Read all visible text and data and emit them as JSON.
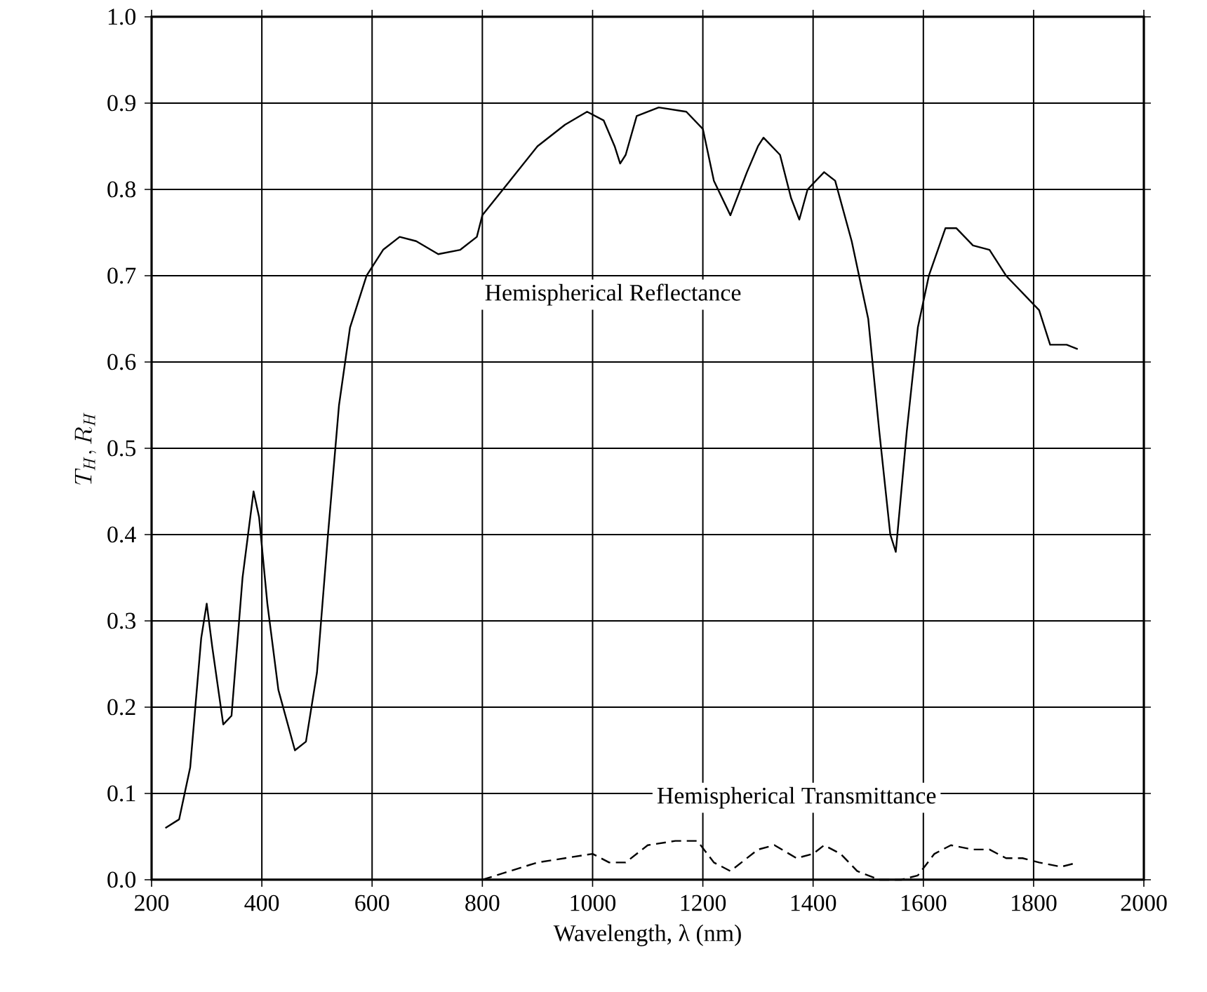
{
  "chart_data": {
    "type": "line",
    "xlabel": "Wavelength, λ (nm)",
    "ylabel": "T_H, R_H",
    "xlim": [
      200,
      2000
    ],
    "ylim": [
      0,
      1
    ],
    "xticks": [
      200,
      400,
      600,
      800,
      1000,
      1200,
      1400,
      1600,
      1800,
      2000
    ],
    "yticks": [
      {
        "value": 0,
        "label": "0.0"
      },
      0.1,
      0.2,
      0.3,
      0.4,
      0.5,
      0.6,
      0.7,
      0.8,
      0.9,
      {
        "value": 1,
        "label": "1.0"
      }
    ],
    "grid": true,
    "series": [
      {
        "name": "Hemispherical Reflectance",
        "color": "#000000",
        "line_style": "solid",
        "x": [
          225,
          250,
          270,
          290,
          300,
          310,
          330,
          345,
          365,
          385,
          395,
          410,
          430,
          460,
          480,
          500,
          520,
          540,
          560,
          590,
          620,
          650,
          680,
          720,
          760,
          790,
          800,
          850,
          900,
          950,
          990,
          1020,
          1040,
          1050,
          1060,
          1080,
          1120,
          1170,
          1200,
          1220,
          1250,
          1280,
          1300,
          1310,
          1340,
          1360,
          1375,
          1390,
          1420,
          1440,
          1470,
          1500,
          1520,
          1540,
          1550,
          1570,
          1590,
          1610,
          1640,
          1660,
          1690,
          1720,
          1750,
          1780,
          1810,
          1830,
          1860,
          1880
        ],
        "values": [
          0.06,
          0.07,
          0.13,
          0.28,
          0.32,
          0.27,
          0.18,
          0.19,
          0.35,
          0.45,
          0.42,
          0.32,
          0.22,
          0.15,
          0.16,
          0.24,
          0.4,
          0.55,
          0.64,
          0.7,
          0.73,
          0.745,
          0.74,
          0.725,
          0.73,
          0.745,
          0.77,
          0.81,
          0.85,
          0.875,
          0.89,
          0.88,
          0.85,
          0.83,
          0.84,
          0.885,
          0.895,
          0.89,
          0.87,
          0.81,
          0.77,
          0.82,
          0.85,
          0.86,
          0.84,
          0.79,
          0.765,
          0.8,
          0.82,
          0.81,
          0.74,
          0.65,
          0.52,
          0.4,
          0.38,
          0.52,
          0.64,
          0.7,
          0.755,
          0.755,
          0.735,
          0.73,
          0.7,
          0.68,
          0.66,
          0.62,
          0.62,
          0.615
        ]
      },
      {
        "name": "Hemispherical Transmittance",
        "color": "#000000",
        "line_style": "dashed",
        "x": [
          800,
          850,
          900,
          950,
          1000,
          1030,
          1060,
          1100,
          1150,
          1190,
          1220,
          1250,
          1300,
          1330,
          1370,
          1400,
          1420,
          1450,
          1480,
          1520,
          1560,
          1590,
          1620,
          1650,
          1690,
          1720,
          1750,
          1780,
          1810,
          1850,
          1880
        ],
        "values": [
          0.0,
          0.01,
          0.02,
          0.025,
          0.03,
          0.02,
          0.02,
          0.04,
          0.045,
          0.045,
          0.02,
          0.01,
          0.035,
          0.04,
          0.025,
          0.03,
          0.04,
          0.03,
          0.01,
          0.0,
          0.0,
          0.005,
          0.03,
          0.04,
          0.035,
          0.035,
          0.025,
          0.025,
          0.02,
          0.015,
          0.02
        ]
      }
    ]
  }
}
